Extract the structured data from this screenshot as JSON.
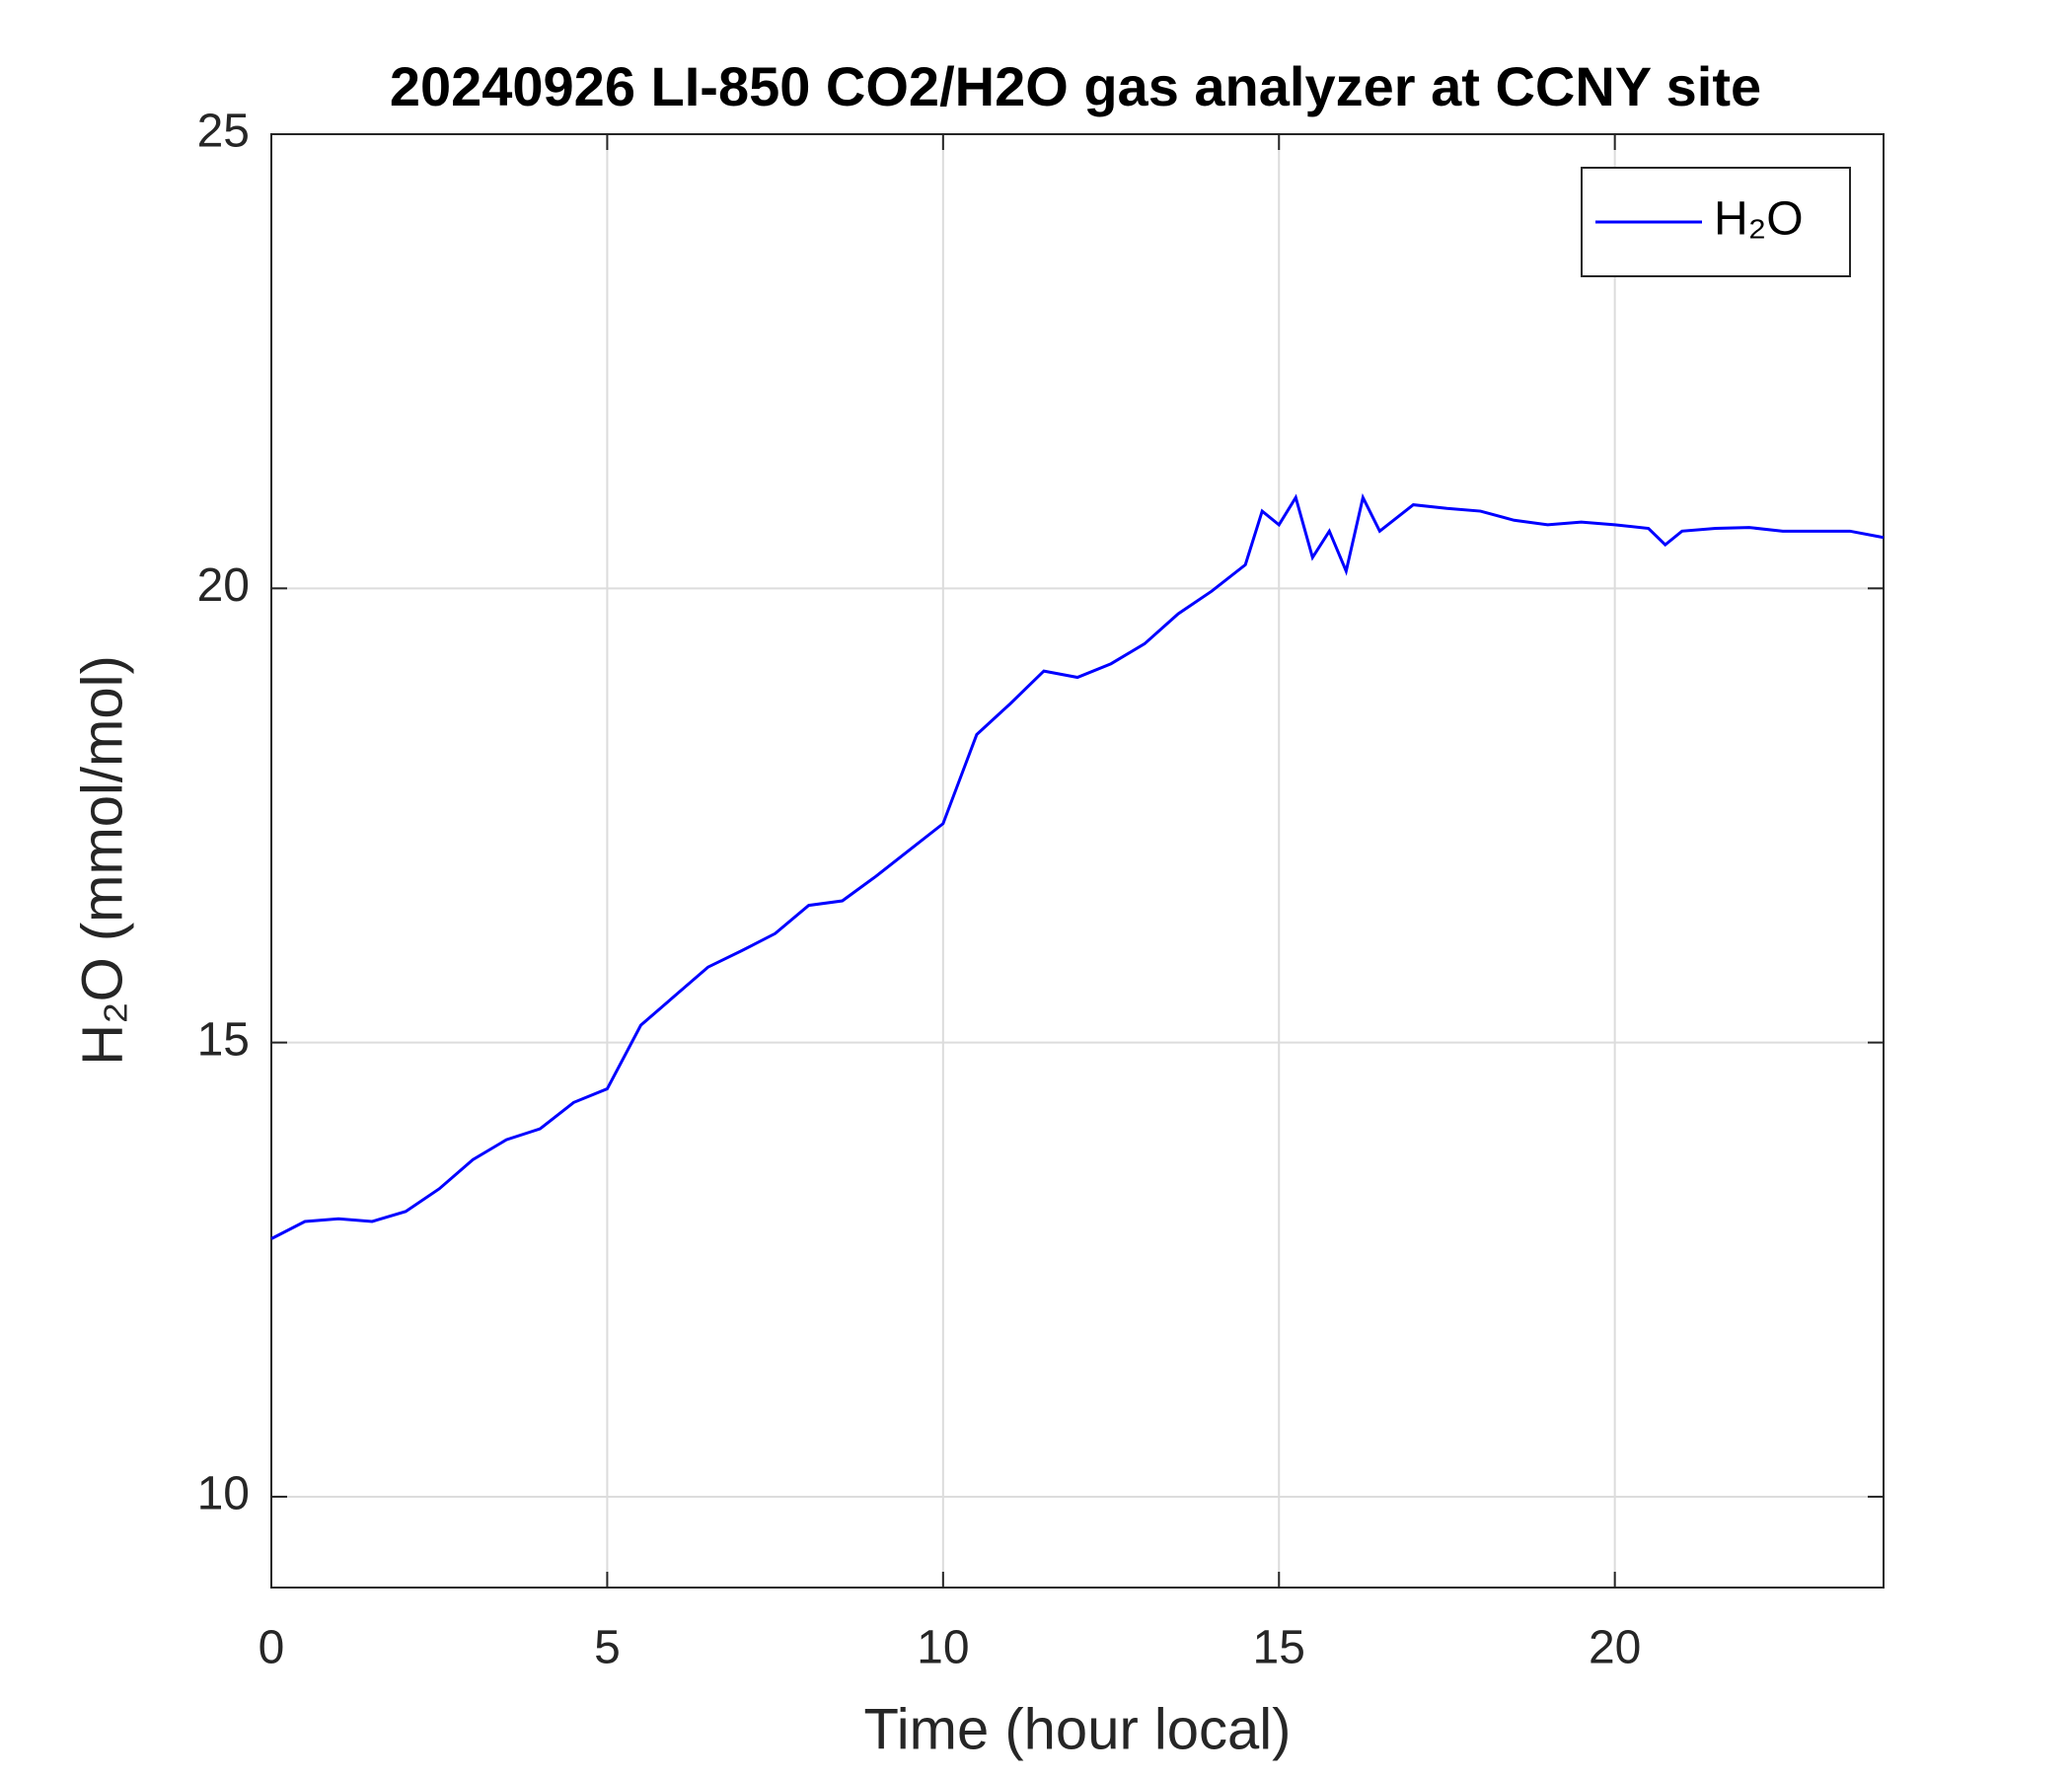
{
  "chart_data": {
    "type": "line",
    "title": "20240926 LI-850 CO2/H2O gas analyzer at CCNY site",
    "x_label": "Time (hour local)",
    "y_label": "H₂O (mmol/mol)",
    "x": [
      0,
      0.5,
      1,
      1.5,
      2,
      2.5,
      3,
      3.5,
      4,
      4.5,
      5,
      5.5,
      6,
      6.5,
      7,
      7.5,
      8,
      8.5,
      9,
      9.5,
      10,
      10.5,
      11,
      11.5,
      12,
      12.5,
      13,
      13.5,
      14,
      14.5,
      14.75,
      15,
      15.25,
      15.5,
      15.75,
      16,
      16.25,
      16.5,
      17,
      17.5,
      18,
      18.5,
      19,
      19.5,
      20,
      20.5,
      20.75,
      21,
      21.5,
      22,
      22.5,
      23,
      23.5,
      24
    ],
    "series": [
      {
        "name": "H₂O",
        "color": "#0000ff",
        "values": [
          12.84,
          13.03,
          13.06,
          13.03,
          13.14,
          13.39,
          13.71,
          13.93,
          14.05,
          14.34,
          14.49,
          15.19,
          15.51,
          15.83,
          16.01,
          16.2,
          16.51,
          16.56,
          16.83,
          17.12,
          17.41,
          18.39,
          18.73,
          19.09,
          19.02,
          19.17,
          19.39,
          19.72,
          19.97,
          20.26,
          20.85,
          20.7,
          21.0,
          20.34,
          20.63,
          20.19,
          21.0,
          20.63,
          20.92,
          20.88,
          20.85,
          20.75,
          20.7,
          20.73,
          20.7,
          20.66,
          20.48,
          20.63,
          20.66,
          20.67,
          20.63,
          20.63,
          20.63,
          20.56
        ]
      }
    ],
    "xlim": [
      0,
      24
    ],
    "ylim": [
      9,
      25
    ],
    "xticks": [
      0,
      5,
      10,
      15,
      20
    ],
    "yticks": [
      10,
      15,
      20,
      25
    ],
    "grid": true,
    "legend": "northeast"
  }
}
